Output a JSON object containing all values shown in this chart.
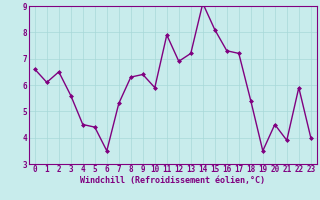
{
  "x": [
    0,
    1,
    2,
    3,
    4,
    5,
    6,
    7,
    8,
    9,
    10,
    11,
    12,
    13,
    14,
    15,
    16,
    17,
    18,
    19,
    20,
    21,
    22,
    23
  ],
  "y": [
    6.6,
    6.1,
    6.5,
    5.6,
    4.5,
    4.4,
    3.5,
    5.3,
    6.3,
    6.4,
    5.9,
    7.9,
    6.9,
    7.2,
    9.1,
    8.1,
    7.3,
    7.2,
    5.4,
    3.5,
    4.5,
    3.9,
    5.9,
    4.0
  ],
  "line_color": "#800080",
  "marker": "D",
  "marker_size": 2.0,
  "linewidth": 1.0,
  "xlabel": "Windchill (Refroidissement éolien,°C)",
  "xlabel_fontsize": 6.0,
  "xlim": [
    -0.5,
    23.5
  ],
  "ylim": [
    3,
    9
  ],
  "yticks": [
    3,
    4,
    5,
    6,
    7,
    8,
    9
  ],
  "xticks": [
    0,
    1,
    2,
    3,
    4,
    5,
    6,
    7,
    8,
    9,
    10,
    11,
    12,
    13,
    14,
    15,
    16,
    17,
    18,
    19,
    20,
    21,
    22,
    23
  ],
  "tick_fontsize": 5.5,
  "grid_color": "#a8d8d8",
  "bg_color": "#c8ecec",
  "fig_bg_color": "#c8ecec",
  "xlabel_color": "#800080",
  "tick_color": "#800080",
  "spine_color": "#800080"
}
